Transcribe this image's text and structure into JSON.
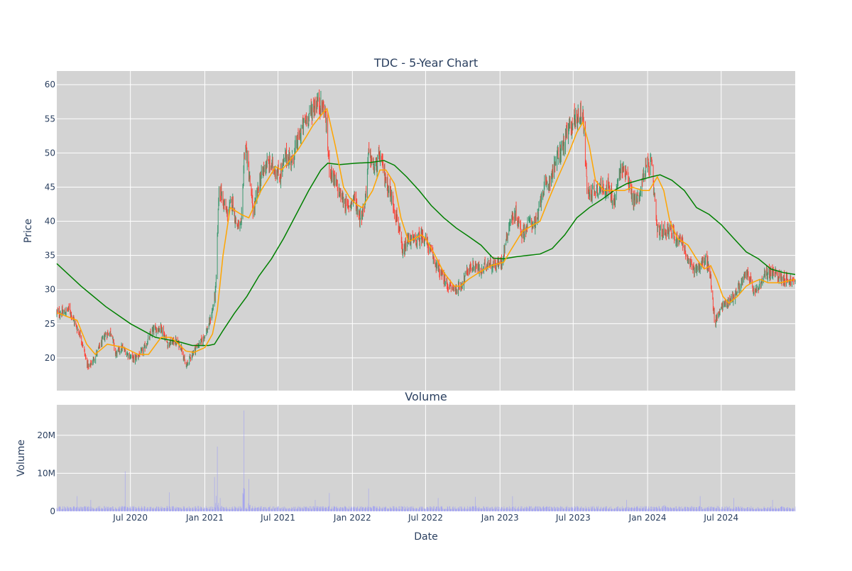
{
  "chart_data": [
    {
      "type": "candlestick",
      "title": "TDC - 5-Year Chart",
      "xlabel": "",
      "ylabel": "Price",
      "ylim": [
        15.2,
        62
      ],
      "xlim": [
        "2020-01-01",
        "2024-12-31"
      ],
      "y_ticks": [
        20,
        25,
        30,
        35,
        40,
        45,
        50,
        55,
        60
      ],
      "grid": true,
      "legend": "none",
      "colors": {
        "increasing": "#3d9970",
        "decreasing": "#ff4136",
        "ma_short": "#ffa500",
        "ma_long": "#008000",
        "background": "#d3d3d3"
      },
      "close_anchors": [
        [
          "2020-01-02",
          26.6
        ],
        [
          "2020-01-20",
          26.6
        ],
        [
          "2020-02-01",
          27.2
        ],
        [
          "2020-02-15",
          25.0
        ],
        [
          "2020-03-01",
          23.0
        ],
        [
          "2020-03-12",
          20.0
        ],
        [
          "2020-03-20",
          18.5
        ],
        [
          "2020-04-01",
          19.8
        ],
        [
          "2020-04-15",
          21.5
        ],
        [
          "2020-05-01",
          23.5
        ],
        [
          "2020-05-15",
          23.8
        ],
        [
          "2020-05-25",
          20.5
        ],
        [
          "2020-06-10",
          21.5
        ],
        [
          "2020-06-25",
          20.5
        ],
        [
          "2020-07-10",
          19.8
        ],
        [
          "2020-08-01",
          21.0
        ],
        [
          "2020-08-25",
          24.0
        ],
        [
          "2020-09-15",
          24.5
        ],
        [
          "2020-10-01",
          22.0
        ],
        [
          "2020-10-20",
          22.5
        ],
        [
          "2020-11-05",
          21.5
        ],
        [
          "2020-11-15",
          18.5
        ],
        [
          "2020-11-25",
          20.0
        ],
        [
          "2020-12-10",
          21.5
        ],
        [
          "2020-12-25",
          22.5
        ],
        [
          "2021-01-10",
          24.5
        ],
        [
          "2021-01-20",
          27.0
        ],
        [
          "2021-01-28",
          30.0
        ],
        [
          "2021-02-05",
          45.0
        ],
        [
          "2021-02-15",
          43.0
        ],
        [
          "2021-02-25",
          41.0
        ],
        [
          "2021-03-10",
          43.0
        ],
        [
          "2021-03-20",
          39.5
        ],
        [
          "2021-04-01",
          39.0
        ],
        [
          "2021-04-10",
          52.0
        ],
        [
          "2021-04-20",
          47.0
        ],
        [
          "2021-05-01",
          41.0
        ],
        [
          "2021-05-15",
          45.5
        ],
        [
          "2021-06-01",
          48.5
        ],
        [
          "2021-06-20",
          48.0
        ],
        [
          "2021-07-05",
          46.5
        ],
        [
          "2021-07-20",
          49.5
        ],
        [
          "2021-08-05",
          49.0
        ],
        [
          "2021-08-20",
          52.0
        ],
        [
          "2021-09-05",
          54.5
        ],
        [
          "2021-09-20",
          56.0
        ],
        [
          "2021-10-05",
          57.5
        ],
        [
          "2021-10-25",
          56.5
        ],
        [
          "2021-11-05",
          48.0
        ],
        [
          "2021-11-20",
          45.5
        ],
        [
          "2021-12-05",
          43.5
        ],
        [
          "2021-12-20",
          42.0
        ],
        [
          "2022-01-05",
          43.5
        ],
        [
          "2022-01-20",
          40.5
        ],
        [
          "2022-02-01",
          42.5
        ],
        [
          "2022-02-10",
          50.0
        ],
        [
          "2022-02-25",
          47.5
        ],
        [
          "2022-03-10",
          49.5
        ],
        [
          "2022-03-25",
          46.0
        ],
        [
          "2022-04-10",
          43.0
        ],
        [
          "2022-04-25",
          39.5
        ],
        [
          "2022-05-05",
          35.0
        ],
        [
          "2022-05-20",
          37.5
        ],
        [
          "2022-06-05",
          37.0
        ],
        [
          "2022-06-25",
          38.0
        ],
        [
          "2022-07-10",
          36.0
        ],
        [
          "2022-07-25",
          34.0
        ],
        [
          "2022-08-10",
          32.0
        ],
        [
          "2022-08-25",
          30.5
        ],
        [
          "2022-09-15",
          30.0
        ],
        [
          "2022-10-01",
          31.0
        ],
        [
          "2022-10-15",
          33.0
        ],
        [
          "2022-11-01",
          33.5
        ],
        [
          "2022-11-15",
          32.5
        ],
        [
          "2022-12-01",
          34.0
        ],
        [
          "2022-12-20",
          33.5
        ],
        [
          "2023-01-05",
          34.0
        ],
        [
          "2023-01-25",
          40.0
        ],
        [
          "2023-02-10",
          41.0
        ],
        [
          "2023-02-25",
          38.0
        ],
        [
          "2023-03-15",
          40.0
        ],
        [
          "2023-04-01",
          39.5
        ],
        [
          "2023-04-15",
          44.5
        ],
        [
          "2023-05-01",
          45.5
        ],
        [
          "2023-05-20",
          49.0
        ],
        [
          "2023-06-05",
          51.0
        ],
        [
          "2023-06-20",
          53.5
        ],
        [
          "2023-07-05",
          55.0
        ],
        [
          "2023-07-25",
          56.0
        ],
        [
          "2023-08-05",
          44.0
        ],
        [
          "2023-08-20",
          44.5
        ],
        [
          "2023-09-05",
          45.0
        ],
        [
          "2023-09-25",
          45.0
        ],
        [
          "2023-10-10",
          42.5
        ],
        [
          "2023-10-25",
          47.5
        ],
        [
          "2023-11-10",
          47.5
        ],
        [
          "2023-11-25",
          43.0
        ],
        [
          "2023-12-10",
          43.5
        ],
        [
          "2023-12-25",
          47.5
        ],
        [
          "2024-01-10",
          48.5
        ],
        [
          "2024-01-25",
          38.5
        ],
        [
          "2024-02-10",
          38.5
        ],
        [
          "2024-02-25",
          39.0
        ],
        [
          "2024-03-10",
          37.5
        ],
        [
          "2024-03-25",
          37.5
        ],
        [
          "2024-04-10",
          34.0
        ],
        [
          "2024-04-25",
          33.0
        ],
        [
          "2024-05-10",
          33.5
        ],
        [
          "2024-05-25",
          34.5
        ],
        [
          "2024-06-05",
          31.5
        ],
        [
          "2024-06-15",
          25.0
        ],
        [
          "2024-06-30",
          27.5
        ],
        [
          "2024-07-15",
          28.0
        ],
        [
          "2024-08-01",
          29.0
        ],
        [
          "2024-08-20",
          31.0
        ],
        [
          "2024-09-05",
          32.5
        ],
        [
          "2024-09-20",
          29.5
        ],
        [
          "2024-10-05",
          30.5
        ],
        [
          "2024-10-20",
          32.5
        ],
        [
          "2024-11-05",
          32.5
        ],
        [
          "2024-11-20",
          32.0
        ],
        [
          "2024-12-31",
          31.0
        ]
      ],
      "ma_short_anchors": [
        [
          "2020-01-02",
          26.6
        ],
        [
          "2020-02-20",
          25.5
        ],
        [
          "2020-03-15",
          22.0
        ],
        [
          "2020-04-05",
          20.5
        ],
        [
          "2020-05-05",
          22.0
        ],
        [
          "2020-06-15",
          21.5
        ],
        [
          "2020-07-20",
          20.5
        ],
        [
          "2020-08-15",
          20.5
        ],
        [
          "2020-09-15",
          23.0
        ],
        [
          "2020-10-10",
          23.0
        ],
        [
          "2020-11-15",
          21.0
        ],
        [
          "2020-12-05",
          20.8
        ],
        [
          "2021-01-01",
          21.5
        ],
        [
          "2021-01-20",
          23.5
        ],
        [
          "2021-02-01",
          27.0
        ],
        [
          "2021-02-15",
          35.0
        ],
        [
          "2021-03-05",
          42.0
        ],
        [
          "2021-04-01",
          41.0
        ],
        [
          "2021-04-20",
          40.5
        ],
        [
          "2021-05-20",
          44.5
        ],
        [
          "2021-06-10",
          46.5
        ],
        [
          "2021-06-25",
          48.0
        ],
        [
          "2021-07-10",
          47.5
        ],
        [
          "2021-07-25",
          48.5
        ],
        [
          "2021-08-20",
          50.5
        ],
        [
          "2021-09-10",
          52.5
        ],
        [
          "2021-09-25",
          54.0
        ],
        [
          "2021-10-15",
          55.5
        ],
        [
          "2021-10-30",
          56.5
        ],
        [
          "2021-11-20",
          51.0
        ],
        [
          "2021-12-10",
          45.0
        ],
        [
          "2021-12-25",
          43.5
        ],
        [
          "2022-01-10",
          42.5
        ],
        [
          "2022-01-25",
          42.0
        ],
        [
          "2022-02-20",
          44.5
        ],
        [
          "2022-03-10",
          47.5
        ],
        [
          "2022-03-25",
          47.5
        ],
        [
          "2022-04-15",
          45.5
        ],
        [
          "2022-05-01",
          40.5
        ],
        [
          "2022-05-20",
          37.0
        ],
        [
          "2022-06-20",
          38.0
        ],
        [
          "2022-07-01",
          37.5
        ],
        [
          "2022-07-20",
          35.5
        ],
        [
          "2022-08-15",
          32.5
        ],
        [
          "2022-09-10",
          30.5
        ],
        [
          "2022-09-25",
          30.5
        ],
        [
          "2022-10-15",
          31.5
        ],
        [
          "2022-11-10",
          32.5
        ],
        [
          "2022-12-10",
          33.5
        ],
        [
          "2023-01-10",
          34.0
        ],
        [
          "2023-01-25",
          35.5
        ],
        [
          "2023-02-25",
          38.5
        ],
        [
          "2023-03-25",
          39.5
        ],
        [
          "2023-04-10",
          40.0
        ],
        [
          "2023-04-30",
          43.0
        ],
        [
          "2023-05-25",
          46.5
        ],
        [
          "2023-06-20",
          50.0
        ],
        [
          "2023-07-10",
          53.0
        ],
        [
          "2023-07-25",
          54.5
        ],
        [
          "2023-08-10",
          51.0
        ],
        [
          "2023-08-25",
          46.0
        ],
        [
          "2023-09-15",
          44.5
        ],
        [
          "2023-10-15",
          44.5
        ],
        [
          "2023-11-05",
          44.5
        ],
        [
          "2023-11-25",
          45.0
        ],
        [
          "2023-12-20",
          44.5
        ],
        [
          "2024-01-05",
          44.5
        ],
        [
          "2024-01-25",
          46.5
        ],
        [
          "2024-02-10",
          44.5
        ],
        [
          "2024-02-25",
          40.0
        ],
        [
          "2024-03-15",
          37.5
        ],
        [
          "2024-04-10",
          36.5
        ],
        [
          "2024-05-01",
          34.5
        ],
        [
          "2024-05-20",
          33.0
        ],
        [
          "2024-06-05",
          33.5
        ],
        [
          "2024-06-20",
          31.5
        ],
        [
          "2024-07-05",
          29.0
        ],
        [
          "2024-07-20",
          28.0
        ],
        [
          "2024-08-10",
          29.0
        ],
        [
          "2024-09-01",
          30.5
        ],
        [
          "2024-09-15",
          31.0
        ],
        [
          "2024-10-05",
          31.5
        ],
        [
          "2024-10-25",
          31.0
        ],
        [
          "2024-11-25",
          31.0
        ],
        [
          "2024-12-31",
          31.5
        ]
      ],
      "ma_long_anchors": [
        [
          "2020-01-01",
          33.8
        ],
        [
          "2020-03-01",
          30.5
        ],
        [
          "2020-05-01",
          27.5
        ],
        [
          "2020-07-01",
          25.0
        ],
        [
          "2020-09-01",
          23.0
        ],
        [
          "2020-11-01",
          22.3
        ],
        [
          "2020-12-01",
          21.8
        ],
        [
          "2021-01-10",
          21.8
        ],
        [
          "2021-01-25",
          22.0
        ],
        [
          "2021-02-15",
          24.0
        ],
        [
          "2021-03-15",
          26.5
        ],
        [
          "2021-04-15",
          29.0
        ],
        [
          "2021-05-15",
          32.0
        ],
        [
          "2021-06-15",
          34.5
        ],
        [
          "2021-07-15",
          37.5
        ],
        [
          "2021-08-15",
          41.0
        ],
        [
          "2021-09-15",
          44.5
        ],
        [
          "2021-10-15",
          47.5
        ],
        [
          "2021-11-01",
          48.5
        ],
        [
          "2021-12-01",
          48.3
        ],
        [
          "2022-01-10",
          48.5
        ],
        [
          "2022-02-15",
          48.6
        ],
        [
          "2022-03-20",
          48.9
        ],
        [
          "2022-04-15",
          48.2
        ],
        [
          "2022-05-15",
          46.5
        ],
        [
          "2022-06-15",
          44.5
        ],
        [
          "2022-07-15",
          42.3
        ],
        [
          "2022-08-15",
          40.5
        ],
        [
          "2022-09-15",
          39.0
        ],
        [
          "2022-10-15",
          37.8
        ],
        [
          "2022-11-15",
          36.5
        ],
        [
          "2022-12-15",
          34.6
        ],
        [
          "2023-01-10",
          34.5
        ],
        [
          "2023-02-10",
          34.8
        ],
        [
          "2023-03-10",
          35.0
        ],
        [
          "2023-04-10",
          35.2
        ],
        [
          "2023-05-10",
          36.0
        ],
        [
          "2023-06-10",
          38.0
        ],
        [
          "2023-07-10",
          40.5
        ],
        [
          "2023-08-10",
          42.0
        ],
        [
          "2023-09-10",
          43.2
        ],
        [
          "2023-10-10",
          44.5
        ],
        [
          "2023-11-10",
          45.5
        ],
        [
          "2023-12-10",
          46.0
        ],
        [
          "2024-01-10",
          46.5
        ],
        [
          "2024-02-01",
          46.8
        ],
        [
          "2024-03-01",
          46.0
        ],
        [
          "2024-04-01",
          44.5
        ],
        [
          "2024-05-01",
          42.0
        ],
        [
          "2024-06-01",
          41.0
        ],
        [
          "2024-07-01",
          39.5
        ],
        [
          "2024-08-01",
          37.5
        ],
        [
          "2024-09-01",
          35.5
        ],
        [
          "2024-10-01",
          34.5
        ],
        [
          "2024-11-01",
          33.0
        ],
        [
          "2024-12-01",
          32.5
        ],
        [
          "2024-12-31",
          32.2
        ]
      ]
    },
    {
      "type": "bar",
      "title": "Volume",
      "xlabel": "Date",
      "ylabel": "Volume",
      "ylim": [
        0,
        28000000
      ],
      "y_ticks": [
        0,
        10000000,
        20000000
      ],
      "y_tick_labels": [
        "0",
        "10M",
        "20M"
      ],
      "x_tick_values": [
        "2020-07-01",
        "2021-01-01",
        "2021-07-01",
        "2022-01-01",
        "2022-07-01",
        "2023-01-01",
        "2023-07-01",
        "2024-01-01",
        "2024-07-01"
      ],
      "x_tick_labels": [
        "Jul 2020",
        "Jan 2021",
        "Jul 2021",
        "Jan 2022",
        "Jul 2022",
        "Jan 2023",
        "Jul 2023",
        "Jan 2024",
        "Jul 2024"
      ],
      "grid": true,
      "colors": {
        "bar": "#8c8cff",
        "background": "#d3d3d3"
      },
      "base_volume": 1000000,
      "volume_spikes": [
        [
          "2020-02-20",
          4000000
        ],
        [
          "2020-03-15",
          2500000
        ],
        [
          "2020-03-25",
          3000000
        ],
        [
          "2020-06-18",
          10500000
        ],
        [
          "2020-08-15",
          4500000
        ],
        [
          "2020-10-05",
          5000000
        ],
        [
          "2021-01-25",
          9000000
        ],
        [
          "2021-02-01",
          17000000
        ],
        [
          "2021-02-08",
          3500000
        ],
        [
          "2021-04-08",
          26500000
        ],
        [
          "2021-04-20",
          8500000
        ],
        [
          "2021-10-01",
          3000000
        ],
        [
          "2021-11-05",
          4800000
        ],
        [
          "2022-02-10",
          6000000
        ],
        [
          "2022-05-01",
          3500000
        ],
        [
          "2022-08-01",
          3500000
        ],
        [
          "2022-11-01",
          3800000
        ],
        [
          "2023-02-01",
          4000000
        ],
        [
          "2023-08-05",
          3000000
        ],
        [
          "2023-11-10",
          3000000
        ],
        [
          "2024-02-10",
          7000000
        ],
        [
          "2024-03-10",
          5000000
        ],
        [
          "2024-05-10",
          4000000
        ],
        [
          "2024-08-01",
          3500000
        ],
        [
          "2024-11-05",
          3000000
        ]
      ]
    }
  ]
}
